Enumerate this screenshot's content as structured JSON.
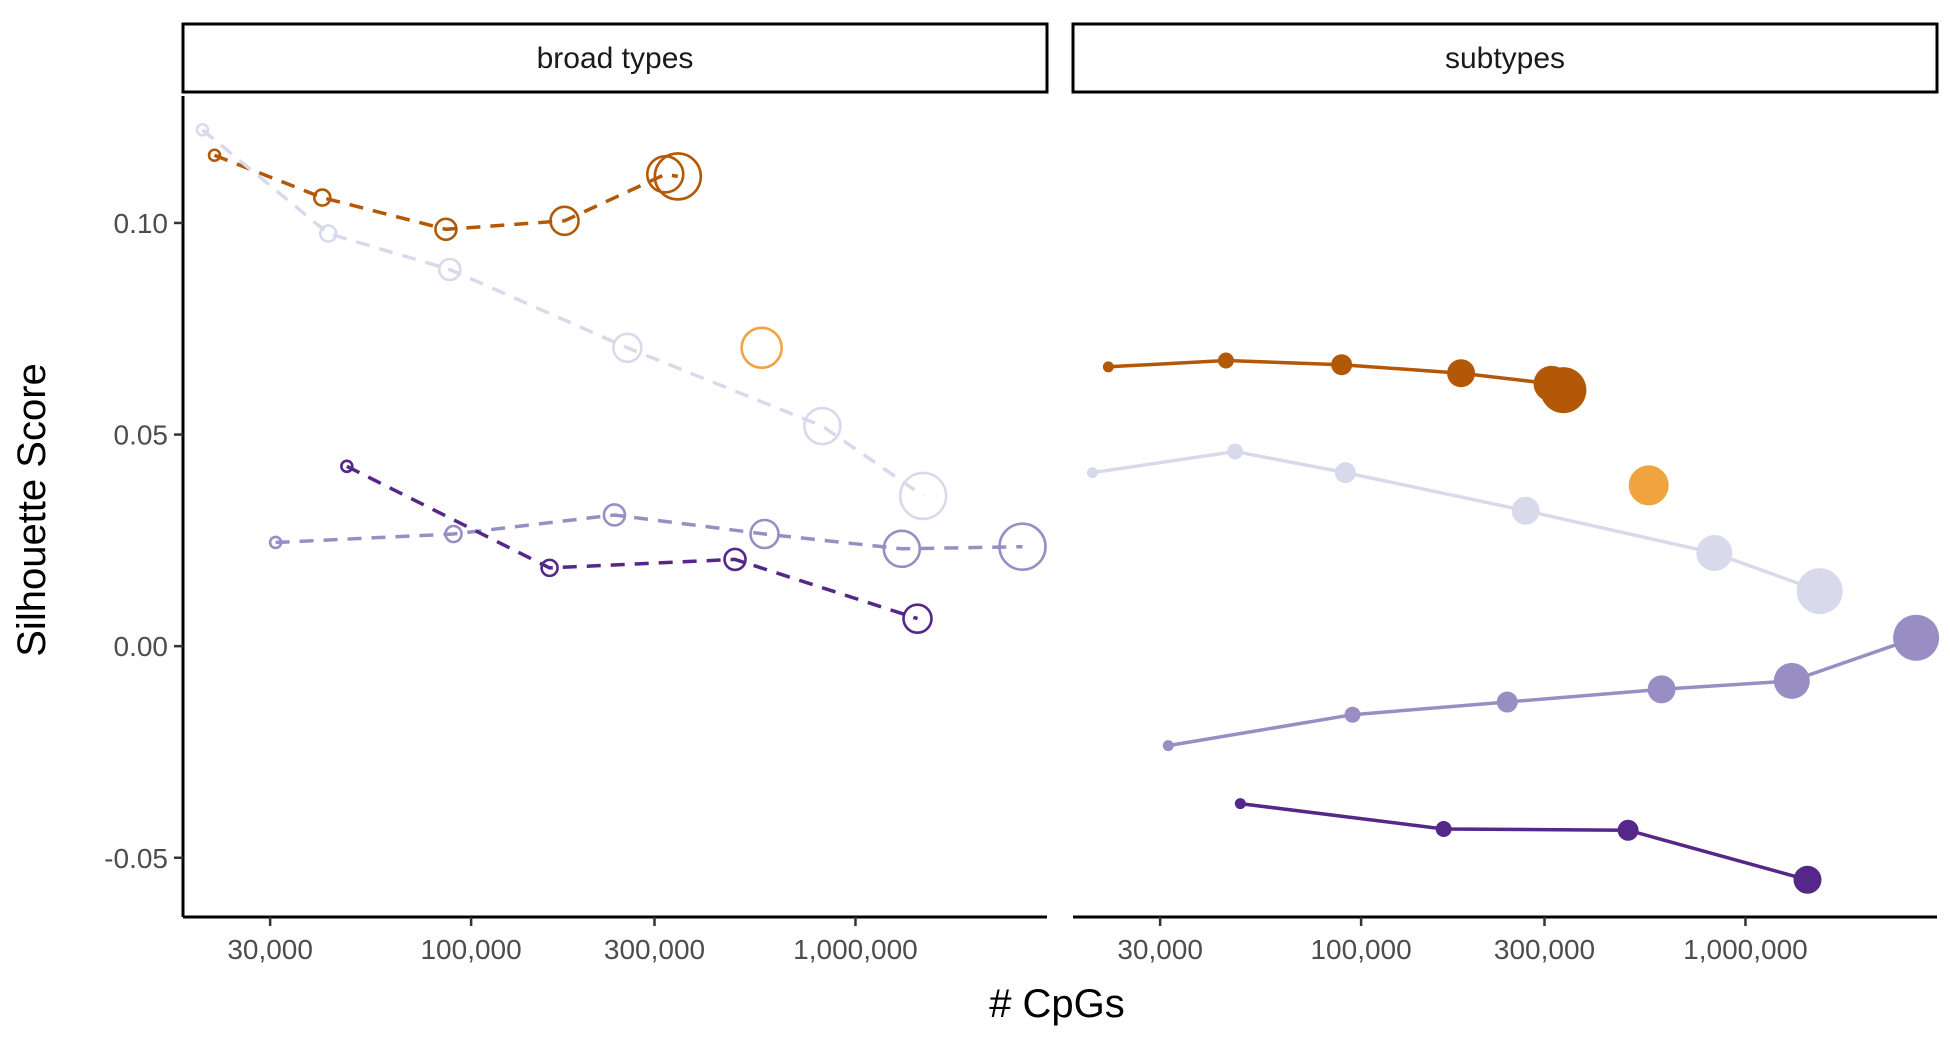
{
  "chart_data": {
    "type": "scatter",
    "xlabel": "# CpGs",
    "ylabel": "Silhouette Score",
    "x_scale": "log",
    "xlim": [
      17800,
      3150000
    ],
    "ylim": [
      -0.064,
      0.13
    ],
    "x_ticks": [
      30000,
      100000,
      300000,
      1000000
    ],
    "x_tick_labels": [
      "30,000",
      "100,000",
      "300,000",
      "1,000,000"
    ],
    "y_ticks": [
      -0.05,
      0.0,
      0.05,
      0.1
    ],
    "y_tick_labels": [
      "-0.05",
      "0.00",
      "0.05",
      "0.10"
    ],
    "grid": false,
    "legend": "none",
    "point_size": "increases along each series",
    "panels": [
      {
        "title": "broad types",
        "marker": "open circle",
        "line_style": "dashed",
        "series": [
          {
            "color": "#b35806",
            "points": [
              [
                21500,
                0.116
              ],
              [
                41000,
                0.106
              ],
              [
                86000,
                0.0985
              ],
              [
                175000,
                0.1005
              ],
              [
                320000,
                0.1115
              ],
              [
                345000,
                0.111
              ]
            ]
          },
          {
            "color": "#d8daeb",
            "points": [
              [
                20000,
                0.122
              ],
              [
                42500,
                0.0975
              ],
              [
                88000,
                0.089
              ],
              [
                255000,
                0.0705
              ],
              [
                820000,
                0.052
              ],
              [
                1500000,
                0.0355
              ]
            ]
          },
          {
            "color": "#f1a340",
            "points": [
              [
                570000,
                0.0705
              ]
            ]
          },
          {
            "color": "#998ec3",
            "points": [
              [
                31000,
                0.0245
              ],
              [
                90000,
                0.0265
              ],
              [
                236000,
                0.031
              ],
              [
                580000,
                0.0265
              ],
              [
                1320000,
                0.023
              ],
              [
                2720000,
                0.0235
              ]
            ]
          },
          {
            "color": "#542788",
            "points": [
              [
                47500,
                0.0425
              ],
              [
                160000,
                0.0185
              ],
              [
                486000,
                0.0205
              ],
              [
                1450000,
                0.0065
              ]
            ]
          }
        ]
      },
      {
        "title": "subtypes",
        "marker": "filled circle",
        "line_style": "solid",
        "series": [
          {
            "color": "#b35806",
            "points": [
              [
                22000,
                0.066
              ],
              [
                44500,
                0.0675
              ],
              [
                89000,
                0.0665
              ],
              [
                182000,
                0.0645
              ],
              [
                313000,
                0.062
              ],
              [
                336000,
                0.0605
              ]
            ]
          },
          {
            "color": "#d8daeb",
            "points": [
              [
                20000,
                0.041
              ],
              [
                47000,
                0.046
              ],
              [
                91000,
                0.041
              ],
              [
                268000,
                0.032
              ],
              [
                830000,
                0.022
              ],
              [
                1560000,
                0.013
              ]
            ]
          },
          {
            "color": "#f1a340",
            "points": [
              [
                560000,
                0.038
              ]
            ]
          },
          {
            "color": "#998ec3",
            "points": [
              [
                31500,
                -0.0235
              ],
              [
                95000,
                -0.0162
              ],
              [
                240000,
                -0.0132
              ],
              [
                605000,
                -0.0102
              ],
              [
                1320000,
                -0.0082
              ],
              [
                2780000,
                0.002
              ]
            ]
          },
          {
            "color": "#542788",
            "points": [
              [
                48500,
                -0.0372
              ],
              [
                164000,
                -0.0432
              ],
              [
                495000,
                -0.0435
              ],
              [
                1450000,
                -0.0552
              ]
            ]
          }
        ]
      }
    ]
  }
}
